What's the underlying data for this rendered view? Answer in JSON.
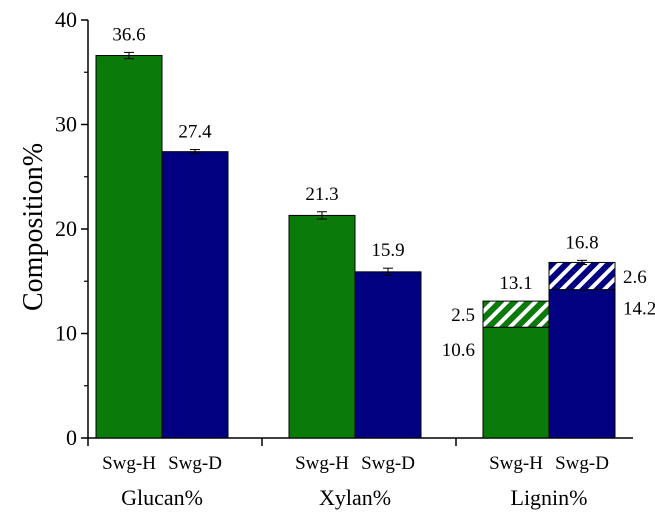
{
  "chart_data": {
    "type": "bar",
    "ylabel": "Composition%",
    "ylim": [
      0,
      40
    ],
    "yticks": [
      0,
      10,
      20,
      30,
      40
    ],
    "grid": false,
    "colors": {
      "Swg-H": "#0a7b0a",
      "Swg-D": "#000080",
      "hatch": "#ffffff"
    },
    "groups": [
      {
        "name": "Glucan%",
        "bars": [
          {
            "label": "Swg-H",
            "value": 36.6,
            "error": 0.3,
            "value_label": "36.6"
          },
          {
            "label": "Swg-D",
            "value": 27.4,
            "error": 0.2,
            "value_label": "27.4"
          }
        ]
      },
      {
        "name": "Xylan%",
        "bars": [
          {
            "label": "Swg-H",
            "value": 21.3,
            "error": 0.35,
            "value_label": "21.3"
          },
          {
            "label": "Swg-D",
            "value": 15.9,
            "error": 0.35,
            "value_label": "15.9"
          }
        ]
      },
      {
        "name": "Lignin%",
        "bars": [
          {
            "label": "Swg-H",
            "value": 13.1,
            "error": 0,
            "value_label": "13.1",
            "segments": [
              {
                "value": 10.6,
                "label": "10.6",
                "hatched": false
              },
              {
                "value": 2.5,
                "label": "2.5",
                "hatched": true
              }
            ]
          },
          {
            "label": "Swg-D",
            "value": 16.8,
            "error": 0.2,
            "value_label": "16.8",
            "segments": [
              {
                "value": 14.2,
                "label": "14.2",
                "hatched": false
              },
              {
                "value": 2.6,
                "label": "2.6",
                "hatched": true
              }
            ]
          }
        ]
      }
    ]
  }
}
